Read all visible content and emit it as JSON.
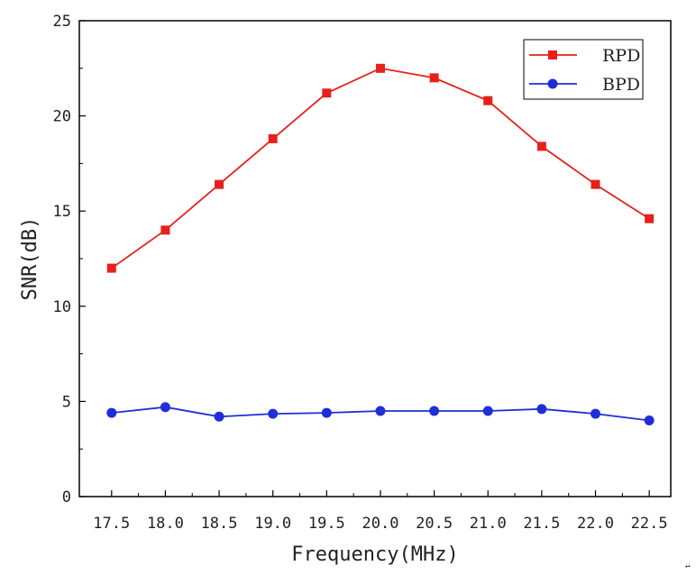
{
  "chart_data": {
    "type": "line",
    "title": "",
    "xlabel": "Frequency(MHz)",
    "ylabel": "SNR(dB)",
    "categories": [
      "17.5",
      "18.0",
      "18.5",
      "19.0",
      "19.5",
      "20.0",
      "20.5",
      "21.0",
      "21.5",
      "22.0",
      "22.5"
    ],
    "x": [
      17.5,
      18.0,
      18.5,
      19.0,
      19.5,
      20.0,
      20.5,
      21.0,
      21.5,
      22.0,
      22.5
    ],
    "xlim": [
      17.2,
      22.7
    ],
    "ylim": [
      0,
      25
    ],
    "yticks": [
      0,
      5,
      10,
      15,
      20,
      25
    ],
    "ytick_labels": [
      "0",
      "5",
      "10",
      "15",
      "20",
      "25"
    ],
    "grid": false,
    "legend_position": "top-right",
    "series": [
      {
        "name": "RPD",
        "color": "#e8201a",
        "marker": "square",
        "values": [
          12.0,
          14.0,
          16.4,
          18.8,
          21.2,
          22.5,
          22.0,
          20.8,
          18.4,
          16.4,
          14.6
        ]
      },
      {
        "name": "BPD",
        "color": "#1f2ed6",
        "marker": "circle",
        "values": [
          4.4,
          4.7,
          4.2,
          4.35,
          4.4,
          4.5,
          4.5,
          4.5,
          4.6,
          4.35,
          4.0
        ]
      }
    ]
  },
  "page": {
    "corner_mark": "↵"
  }
}
